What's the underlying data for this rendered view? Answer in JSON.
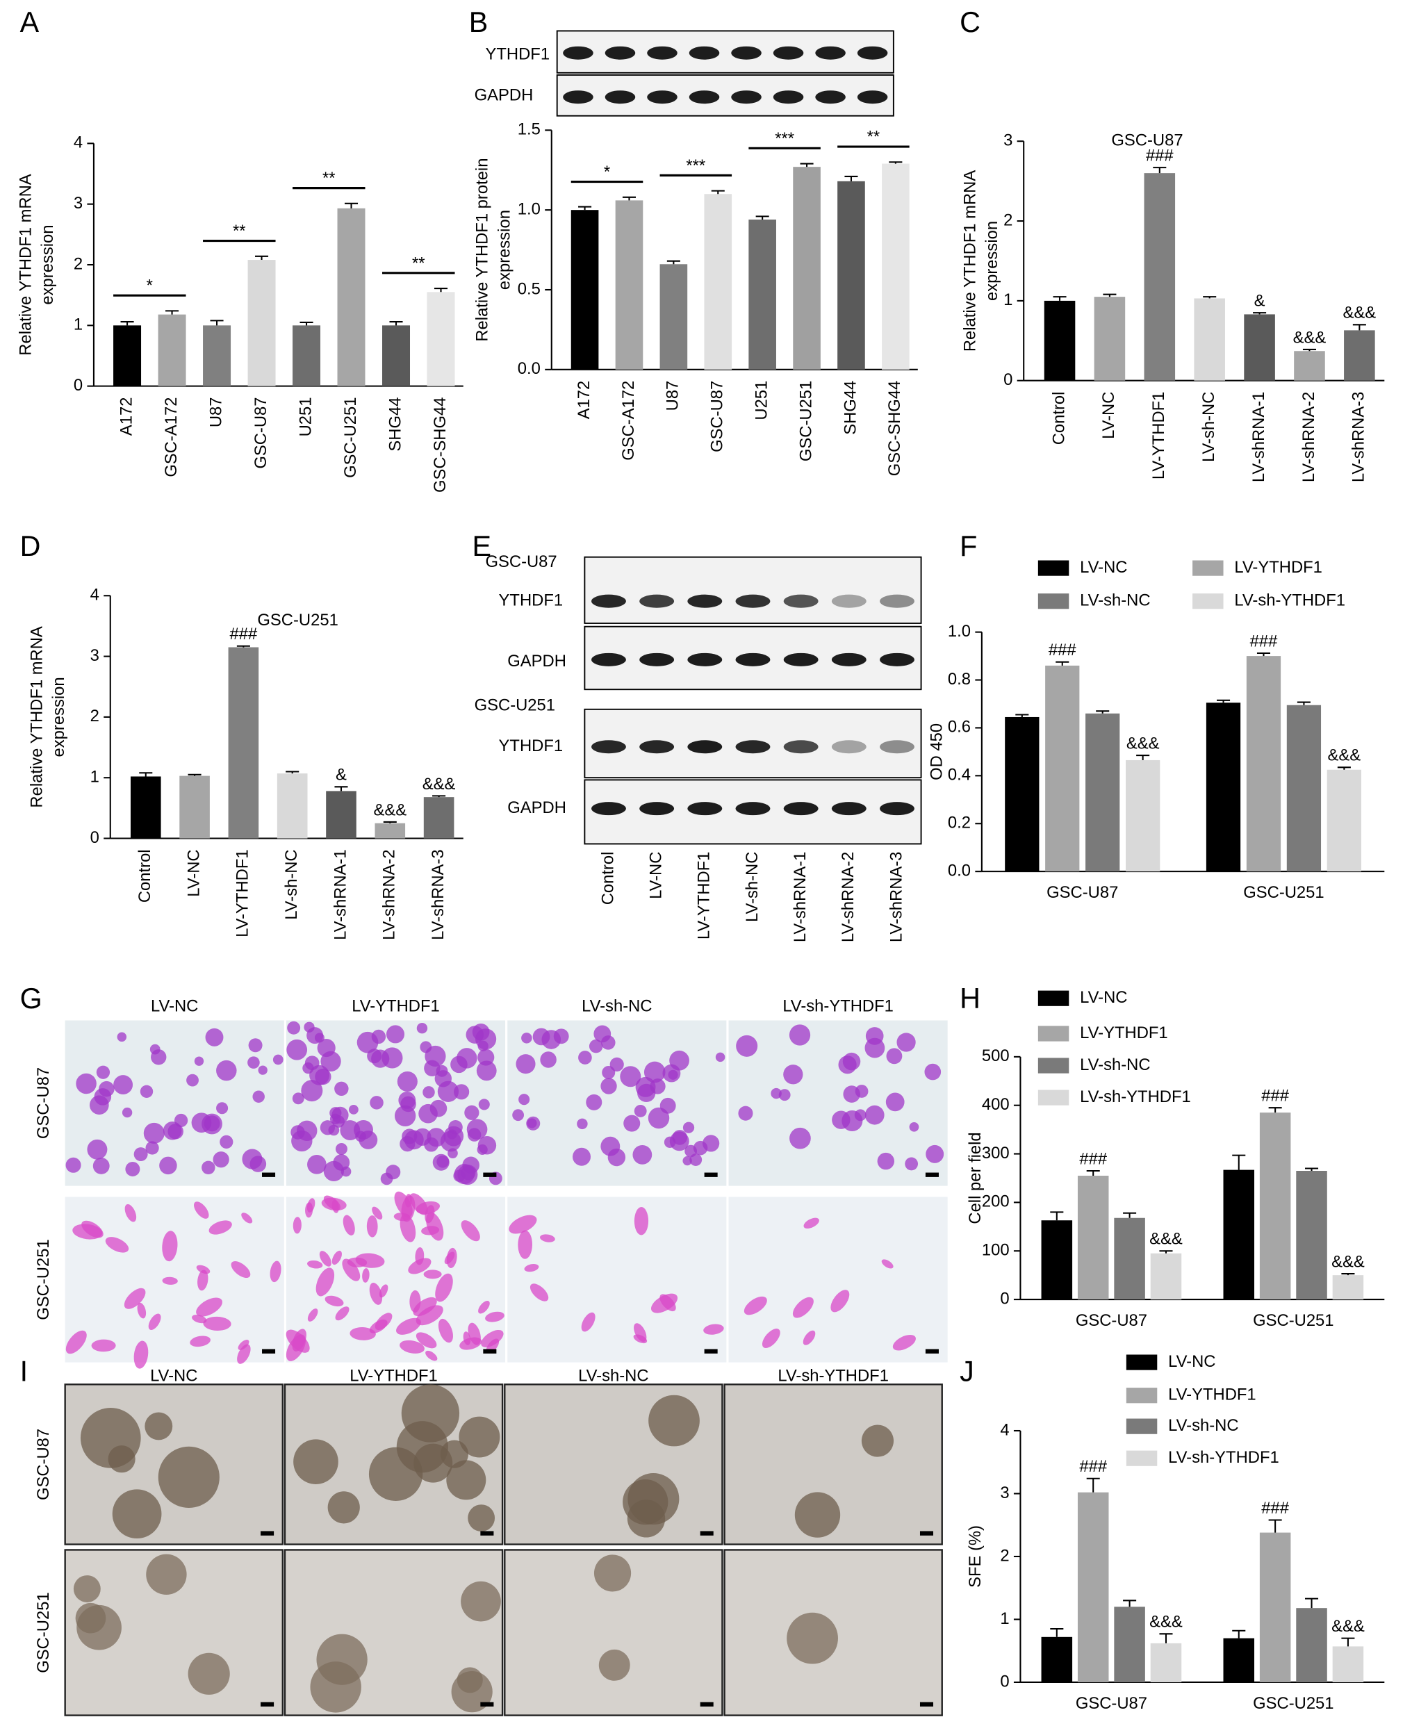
{
  "chart_data": [
    {
      "panel": "A",
      "type": "bar",
      "ylabel": [
        "Relative YTHDF1 mRNA",
        "expression"
      ],
      "categories": [
        "A172",
        "GSC-A172",
        "U87",
        "GSC-U87",
        "U251",
        "GSC-U251",
        "SHG44",
        "GSC-SHG44"
      ],
      "values": [
        1.0,
        1.18,
        1.0,
        2.08,
        1.0,
        2.93,
        1.0,
        1.55
      ],
      "errors": [
        0.06,
        0.06,
        0.08,
        0.06,
        0.05,
        0.08,
        0.06,
        0.06
      ],
      "colors": [
        "#000000",
        "#a6a6a6",
        "#808080",
        "#d9d9d9",
        "#6e6e6e",
        "#a6a6a6",
        "#5a5a5a",
        "#e6e6e6"
      ],
      "significance": [
        "*",
        "**",
        "**",
        "**"
      ],
      "ylim": [
        0,
        4
      ],
      "yticks": [
        0,
        1,
        2,
        3,
        4
      ]
    },
    {
      "panel": "B",
      "type": "bar",
      "ylabel": [
        "Relative YTHDF1 protein",
        "expression"
      ],
      "categories": [
        "A172",
        "GSC-A172",
        "U87",
        "GSC-U87",
        "U251",
        "GSC-U251",
        "SHG44",
        "GSC-SHG44"
      ],
      "values": [
        1.0,
        1.06,
        0.66,
        1.1,
        0.94,
        1.27,
        1.18,
        1.29
      ],
      "errors": [
        0.02,
        0.02,
        0.02,
        0.02,
        0.02,
        0.02,
        0.03,
        0.01
      ],
      "colors": [
        "#000000",
        "#a6a6a6",
        "#808080",
        "#e0e0e0",
        "#6e6e6e",
        "#a0a0a0",
        "#5a5a5a",
        "#e6e6e6"
      ],
      "significance": [
        "*",
        "***",
        "***",
        "**"
      ],
      "ylim": [
        0,
        1.5
      ],
      "yticks": [
        {
          "value": 0,
          "label": "0.0"
        },
        0.5,
        {
          "value": 1,
          "label": "1.0"
        },
        1.5
      ]
    },
    {
      "panel": "C",
      "type": "bar",
      "title": "GSC-U87",
      "ylabel": [
        "Relative YTHDF1 mRNA",
        "expression"
      ],
      "categories": [
        "Control",
        "LV-NC",
        "LV-YTHDF1",
        "LV-sh-NC",
        "LV-shRNA-1",
        "LV-shRNA-2",
        "LV-shRNA-3"
      ],
      "values": [
        1.0,
        1.05,
        2.6,
        1.03,
        0.83,
        0.37,
        0.63
      ],
      "errors": [
        0.05,
        0.03,
        0.07,
        0.02,
        0.02,
        0.02,
        0.07
      ],
      "colors": [
        "#000000",
        "#a6a6a6",
        "#808080",
        "#d9d9d9",
        "#5a5a5a",
        "#a6a6a6",
        "#6e6e6e"
      ],
      "annotations": [
        null,
        null,
        "###",
        null,
        "&",
        "&&&",
        "&&&"
      ],
      "ylim": [
        0,
        3
      ],
      "yticks": [
        0,
        1,
        2,
        3
      ]
    },
    {
      "panel": "D",
      "type": "bar",
      "title": "GSC-U251",
      "ylabel": [
        "Relative YTHDF1 mRNA",
        "expression"
      ],
      "categories": [
        "Control",
        "LV-NC",
        "LV-YTHDF1",
        "LV-sh-NC",
        "LV-shRNA-1",
        "LV-shRNA-2",
        "LV-shRNA-3"
      ],
      "values": [
        1.02,
        1.03,
        3.15,
        1.07,
        0.78,
        0.25,
        0.68
      ],
      "errors": [
        0.06,
        0.02,
        0.02,
        0.03,
        0.07,
        0.02,
        0.02
      ],
      "colors": [
        "#000000",
        "#a6a6a6",
        "#808080",
        "#d9d9d9",
        "#5a5a5a",
        "#a6a6a6",
        "#6e6e6e"
      ],
      "annotations": [
        null,
        null,
        "###",
        null,
        "&",
        "&&&",
        "&&&"
      ],
      "ylim": [
        0,
        4
      ],
      "yticks": [
        0,
        1,
        2,
        3,
        4
      ]
    },
    {
      "panel": "F",
      "type": "grouped-bar",
      "ylabel": "OD 450",
      "categories": [
        "GSC-U87",
        "GSC-U251"
      ],
      "series": [
        {
          "name": "LV-NC",
          "color": "#000000",
          "values": [
            0.645,
            0.705
          ],
          "errors": [
            0.01,
            0.01
          ],
          "annotations": [
            null,
            null
          ]
        },
        {
          "name": "LV-YTHDF1",
          "color": "#a6a6a6",
          "values": [
            0.86,
            0.9
          ],
          "errors": [
            0.015,
            0.012
          ],
          "annotations": [
            "###",
            "###"
          ]
        },
        {
          "name": "LV-sh-NC",
          "color": "#7a7a7a",
          "values": [
            0.66,
            0.695
          ],
          "errors": [
            0.01,
            0.012
          ],
          "annotations": [
            null,
            null
          ]
        },
        {
          "name": "LV-sh-YTHDF1",
          "color": "#d9d9d9",
          "values": [
            0.465,
            0.425
          ],
          "errors": [
            0.02,
            0.01
          ],
          "annotations": [
            "&&&",
            "&&&"
          ]
        }
      ],
      "ylim": [
        0,
        1
      ],
      "yticks": [
        {
          "value": 0,
          "label": "0.0"
        },
        0.2,
        0.4,
        0.6,
        0.8,
        {
          "value": 1,
          "label": "1.0"
        }
      ]
    },
    {
      "panel": "H",
      "type": "grouped-bar",
      "ylabel": "Cell per field",
      "categories": [
        "GSC-U87",
        "GSC-U251"
      ],
      "series": [
        {
          "name": "LV-NC",
          "color": "#000000",
          "values": [
            163,
            267
          ],
          "errors": [
            17,
            30
          ],
          "annotations": [
            null,
            null
          ]
        },
        {
          "name": "LV-YTHDF1",
          "color": "#a6a6a6",
          "values": [
            255,
            385
          ],
          "errors": [
            10,
            10
          ],
          "annotations": [
            "###",
            "###"
          ]
        },
        {
          "name": "LV-sh-NC",
          "color": "#7a7a7a",
          "values": [
            168,
            265
          ],
          "errors": [
            10,
            5
          ],
          "annotations": [
            null,
            null
          ]
        },
        {
          "name": "LV-sh-YTHDF1",
          "color": "#d9d9d9",
          "values": [
            95,
            50
          ],
          "errors": [
            5,
            3
          ],
          "annotations": [
            "&&&",
            "&&&"
          ]
        }
      ],
      "ylim": [
        0,
        500
      ],
      "yticks": [
        0,
        100,
        200,
        300,
        400,
        500
      ]
    },
    {
      "panel": "J",
      "type": "grouped-bar",
      "ylabel": "SFE (%)",
      "categories": [
        "GSC-U87",
        "GSC-U251"
      ],
      "series": [
        {
          "name": "LV-NC",
          "color": "#000000",
          "values": [
            0.72,
            0.7
          ],
          "errors": [
            0.13,
            0.12
          ],
          "annotations": [
            null,
            null
          ]
        },
        {
          "name": "LV-YTHDF1",
          "color": "#a6a6a6",
          "values": [
            3.02,
            2.38
          ],
          "errors": [
            0.22,
            0.2
          ],
          "annotations": [
            "###",
            "###"
          ]
        },
        {
          "name": "LV-sh-NC",
          "color": "#7a7a7a",
          "values": [
            1.2,
            1.18
          ],
          "errors": [
            0.1,
            0.15
          ],
          "annotations": [
            null,
            null
          ]
        },
        {
          "name": "LV-sh-YTHDF1",
          "color": "#d9d9d9",
          "values": [
            0.62,
            0.57
          ],
          "errors": [
            0.15,
            0.13
          ],
          "annotations": [
            "&&&",
            "&&&"
          ]
        }
      ],
      "ylim": [
        0,
        4
      ],
      "yticks": [
        0,
        1,
        2,
        3,
        4
      ]
    }
  ],
  "blots": {
    "B": {
      "rows": [
        "YTHDF1",
        "GAPDH"
      ]
    },
    "E": {
      "panel": "E",
      "groups": [
        {
          "name": "GSC-U87",
          "rows": [
            "YTHDF1",
            "GAPDH"
          ]
        },
        {
          "name": "GSC-U251",
          "rows": [
            "YTHDF1",
            "GAPDH"
          ]
        }
      ],
      "categories": [
        "Control",
        "LV-NC",
        "LV-YTHDF1",
        "LV-sh-NC",
        "LV-shRNA-1",
        "LV-shRNA-2",
        "LV-shRNA-3"
      ]
    }
  },
  "micrographs": [
    {
      "panel": "G",
      "columns": [
        "LV-NC",
        "LV-YTHDF1",
        "LV-sh-NC",
        "LV-sh-YTHDF1"
      ],
      "rows": [
        "GSC-U87",
        "GSC-U251"
      ]
    },
    {
      "panel": "I",
      "columns": [
        "LV-NC",
        "LV-YTHDF1",
        "LV-sh-NC",
        "LV-sh-YTHDF1"
      ],
      "rows": [
        "GSC-U87",
        "GSC-U251"
      ]
    }
  ]
}
